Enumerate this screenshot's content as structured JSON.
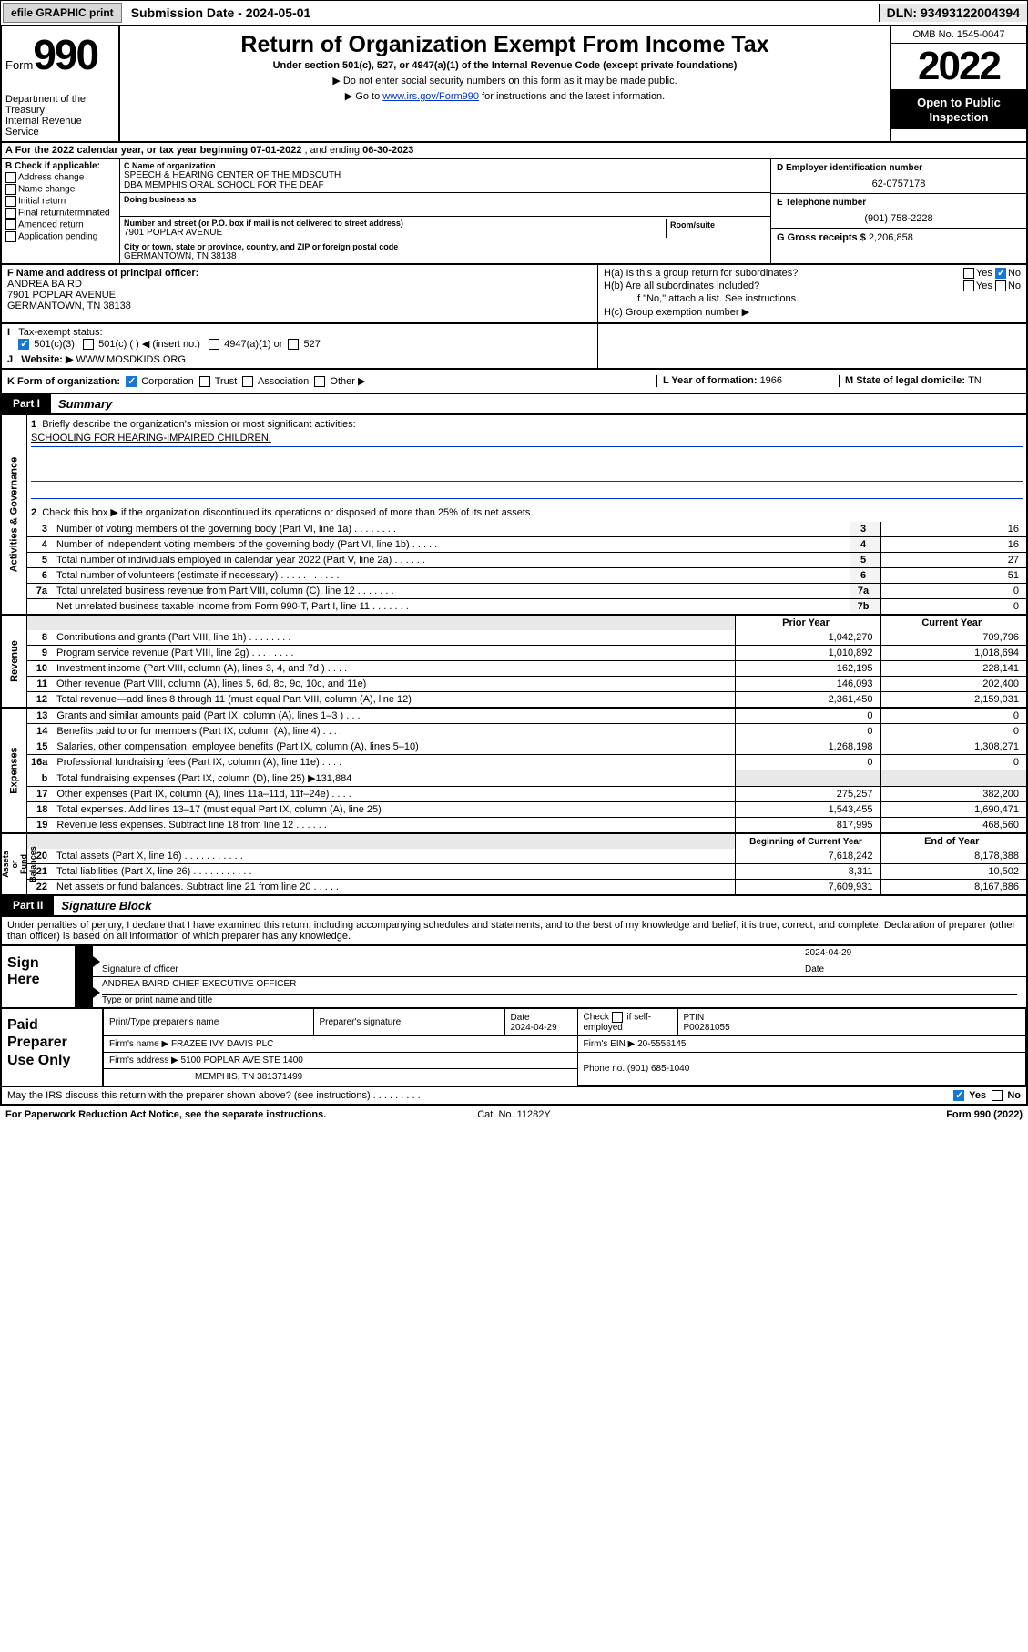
{
  "topbar": {
    "efile": "efile GRAPHIC print",
    "subdate_label": "Submission Date - ",
    "subdate": "2024-05-01",
    "dln_label": "DLN: ",
    "dln": "93493122004394"
  },
  "header": {
    "form_word": "Form",
    "form_num": "990",
    "dept": "Department of the Treasury\nInternal Revenue Service",
    "title": "Return of Organization Exempt From Income Tax",
    "sub": "Under section 501(c), 527, or 4947(a)(1) of the Internal Revenue Code (except private foundations)",
    "note1": "▶ Do not enter social security numbers on this form as it may be made public.",
    "note2_pre": "▶ Go to ",
    "note2_link": "www.irs.gov/Form990",
    "note2_post": " for instructions and the latest information.",
    "omb": "OMB No. 1545-0047",
    "year": "2022",
    "open": "Open to Public Inspection"
  },
  "rowA": {
    "text_pre": "A For the 2022 calendar year, or tax year beginning ",
    "begin": "07-01-2022",
    "mid": "   , and ending ",
    "end": "06-30-2023"
  },
  "B": {
    "hdr": "B Check if applicable:",
    "items": [
      "Address change",
      "Name change",
      "Initial return",
      "Final return/terminated",
      "Amended return",
      "Application pending"
    ]
  },
  "C": {
    "name_lbl": "C Name of organization",
    "name": "SPEECH & HEARING CENTER OF THE MIDSOUTH\nDBA MEMPHIS ORAL SCHOOL FOR THE DEAF",
    "dba_lbl": "Doing business as",
    "addr_lbl": "Number and street (or P.O. box if mail is not delivered to street address)",
    "addr": "7901 POPLAR AVENUE",
    "suite_lbl": "Room/suite",
    "city_lbl": "City or town, state or province, country, and ZIP or foreign postal code",
    "city": "GERMANTOWN, TN  38138"
  },
  "D": {
    "lbl": "D Employer identification number",
    "val": "62-0757178"
  },
  "E": {
    "lbl": "E Telephone number",
    "val": "(901) 758-2228"
  },
  "G": {
    "lbl": "G Gross receipts $ ",
    "val": "2,206,858"
  },
  "F": {
    "lbl": "F Name and address of principal officer:",
    "name": "ANDREA BAIRD",
    "addr": "7901 POPLAR AVENUE",
    "city": "GERMANTOWN, TN  38138"
  },
  "H": {
    "a": "H(a)  Is this a group return for subordinates?",
    "a_yes": "Yes",
    "a_no": "No",
    "b": "H(b)  Are all subordinates included?",
    "b_yes": "Yes",
    "b_no": "No",
    "b_note": "If \"No,\" attach a list. See instructions.",
    "c": "H(c)  Group exemption number ▶"
  },
  "I": {
    "lbl": "Tax-exempt status:",
    "o1": "501(c)(3)",
    "o2": "501(c) (  ) ◀ (insert no.)",
    "o3": "4947(a)(1) or",
    "o4": "527"
  },
  "J": {
    "lbl": "Website: ▶",
    "val": "WWW.MOSDKIDS.ORG"
  },
  "K": {
    "lbl": "K Form of organization:",
    "o1": "Corporation",
    "o2": "Trust",
    "o3": "Association",
    "o4": "Other ▶"
  },
  "L": {
    "lbl": "L Year of formation: ",
    "val": "1966"
  },
  "M": {
    "lbl": "M State of legal domicile: ",
    "val": "TN"
  },
  "part1": {
    "tag": "Part I",
    "name": "Summary",
    "q1": "Briefly describe the organization's mission or most significant activities:",
    "mission": "SCHOOLING FOR HEARING-IMPAIRED CHILDREN.",
    "q2": "Check this box ▶  if the organization discontinued its operations or disposed of more than 25% of its net assets.",
    "rows_gov": [
      {
        "n": "3",
        "d": "Number of voting members of the governing body (Part VI, line 1a)   .     .     .     .     .     .     .     .",
        "ref": "3",
        "v": "16"
      },
      {
        "n": "4",
        "d": "Number of independent voting members of the governing body (Part VI, line 1b)   .     .     .     .     .",
        "ref": "4",
        "v": "16"
      },
      {
        "n": "5",
        "d": "Total number of individuals employed in calendar year 2022 (Part V, line 2a)   .     .     .     .     .     .",
        "ref": "5",
        "v": "27"
      },
      {
        "n": "6",
        "d": "Total number of volunteers (estimate if necessary)   .     .     .     .     .     .     .     .     .     .     .",
        "ref": "6",
        "v": "51"
      },
      {
        "n": "7a",
        "d": "Total unrelated business revenue from Part VIII, column (C), line 12   .     .     .     .     .     .     .",
        "ref": "7a",
        "v": "0"
      },
      {
        "n": "",
        "d": "Net unrelated business taxable income from Form 990-T, Part I, line 11   .     .     .     .     .     .     .",
        "ref": "7b",
        "v": "0"
      }
    ],
    "hdr_prior": "Prior Year",
    "hdr_curr": "Current Year",
    "rows_rev": [
      {
        "n": "8",
        "d": "Contributions and grants (Part VIII, line 1h)   .     .     .     .     .     .     .     .",
        "p": "1,042,270",
        "c": "709,796"
      },
      {
        "n": "9",
        "d": "Program service revenue (Part VIII, line 2g)   .     .     .     .     .     .     .     .",
        "p": "1,010,892",
        "c": "1,018,694"
      },
      {
        "n": "10",
        "d": "Investment income (Part VIII, column (A), lines 3, 4, and 7d )   .     .     .     .",
        "p": "162,195",
        "c": "228,141"
      },
      {
        "n": "11",
        "d": "Other revenue (Part VIII, column (A), lines 5, 6d, 8c, 9c, 10c, and 11e)",
        "p": "146,093",
        "c": "202,400"
      },
      {
        "n": "12",
        "d": "Total revenue—add lines 8 through 11 (must equal Part VIII, column (A), line 12)",
        "p": "2,361,450",
        "c": "2,159,031"
      }
    ],
    "rows_exp": [
      {
        "n": "13",
        "d": "Grants and similar amounts paid (Part IX, column (A), lines 1–3 )   .     .     .",
        "p": "0",
        "c": "0"
      },
      {
        "n": "14",
        "d": "Benefits paid to or for members (Part IX, column (A), line 4)   .     .     .     .",
        "p": "0",
        "c": "0"
      },
      {
        "n": "15",
        "d": "Salaries, other compensation, employee benefits (Part IX, column (A), lines 5–10)",
        "p": "1,268,198",
        "c": "1,308,271"
      },
      {
        "n": "16a",
        "d": "Professional fundraising fees (Part IX, column (A), line 11e)   .     .     .     .",
        "p": "0",
        "c": "0"
      },
      {
        "n": "b",
        "d": "Total fundraising expenses (Part IX, column (D), line 25) ▶131,884",
        "p": "",
        "c": "",
        "grey": true
      },
      {
        "n": "17",
        "d": "Other expenses (Part IX, column (A), lines 11a–11d, 11f–24e)   .     .     .     .",
        "p": "275,257",
        "c": "382,200"
      },
      {
        "n": "18",
        "d": "Total expenses. Add lines 13–17 (must equal Part IX, column (A), line 25)",
        "p": "1,543,455",
        "c": "1,690,471"
      },
      {
        "n": "19",
        "d": "Revenue less expenses. Subtract line 18 from line 12   .     .     .     .     .     .",
        "p": "817,995",
        "c": "468,560"
      }
    ],
    "hdr_beg": "Beginning of Current Year",
    "hdr_end": "End of Year",
    "rows_net": [
      {
        "n": "20",
        "d": "Total assets (Part X, line 16)   .     .     .     .     .     .     .     .     .     .     .",
        "p": "7,618,242",
        "c": "8,178,388"
      },
      {
        "n": "21",
        "d": "Total liabilities (Part X, line 26)   .     .     .     .     .     .     .     .     .     .     .",
        "p": "8,311",
        "c": "10,502"
      },
      {
        "n": "22",
        "d": "Net assets or fund balances. Subtract line 21 from line 20   .     .     .     .     .",
        "p": "7,609,931",
        "c": "8,167,886"
      }
    ],
    "vlabels": {
      "gov": "Activities & Governance",
      "rev": "Revenue",
      "exp": "Expenses",
      "net": "Net Assets or\nFund Balances"
    }
  },
  "part2": {
    "tag": "Part II",
    "name": "Signature Block",
    "decl": "Under penalties of perjury, I declare that I have examined this return, including accompanying schedules and statements, and to the best of my knowledge and belief, it is true, correct, and complete. Declaration of preparer (other than officer) is based on all information of which preparer has any knowledge.",
    "sign_lbl": "Sign Here",
    "sig_of_officer": "Signature of officer",
    "sig_date": "2024-04-29",
    "date_lbl": "Date",
    "officer": "ANDREA BAIRD  CHIEF EXECUTIVE OFFICER",
    "type_name": "Type or print name and title",
    "prep_lbl": "Paid Preparer Use Only",
    "prep_hdr": {
      "name": "Print/Type preparer's name",
      "sig": "Preparer's signature",
      "date": "Date",
      "dateval": "2024-04-29",
      "check": "Check",
      "if": "if self-employed",
      "ptin": "PTIN",
      "ptinval": "P00281055"
    },
    "firm_name_lbl": "Firm's name      ▶",
    "firm_name": "FRAZEE IVY DAVIS PLC",
    "firm_ein_lbl": "Firm's EIN ▶ ",
    "firm_ein": "20-5556145",
    "firm_addr_lbl": "Firm's address ▶",
    "firm_addr": "5100 POPLAR AVE STE 1400",
    "firm_city": "MEMPHIS, TN  381371499",
    "phone_lbl": "Phone no. ",
    "phone": "(901) 685-1040",
    "discuss": "May the IRS discuss this return with the preparer shown above? (see instructions)   .     .     .     .     .     .     .     .     .",
    "yes": "Yes",
    "no": "No"
  },
  "bottom": {
    "l": "For Paperwork Reduction Act Notice, see the separate instructions.",
    "c": "Cat. No. 11282Y",
    "r": "Form 990 (2022)"
  }
}
